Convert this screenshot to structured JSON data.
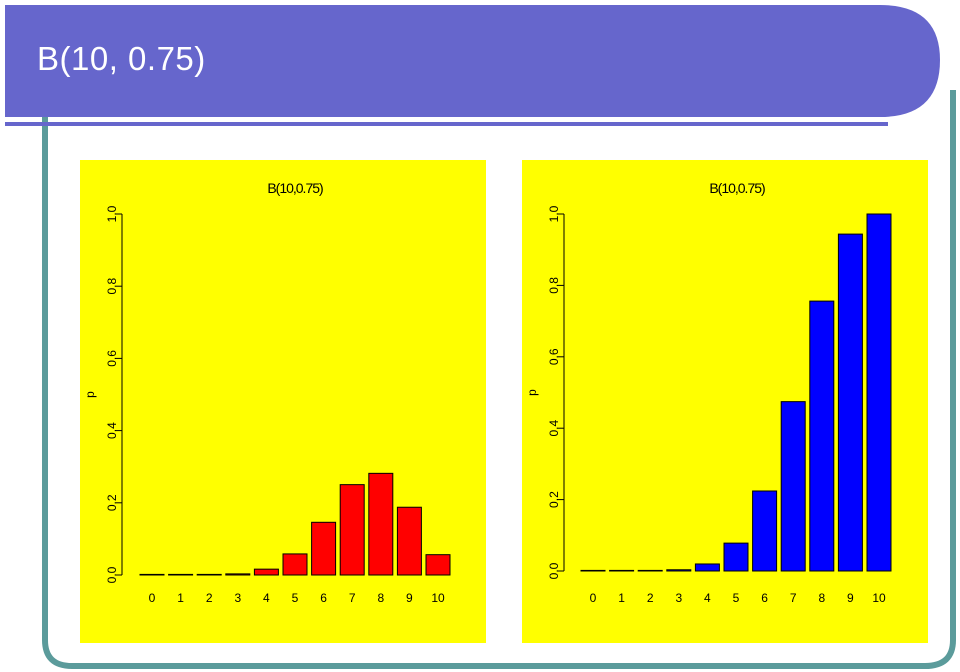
{
  "slide": {
    "title": "B(10, 0.75)",
    "colors": {
      "header": "#6666cc",
      "border": "#5b9b9b",
      "panel_bg": "#ffff00"
    }
  },
  "chart_data": [
    {
      "type": "bar",
      "title": "B(10,0.75)",
      "ylabel": "p",
      "xlabel": "",
      "categories": [
        "0",
        "1",
        "2",
        "3",
        "4",
        "5",
        "6",
        "7",
        "8",
        "9",
        "10"
      ],
      "values": [
        1e-06,
        3e-05,
        0.0004,
        0.0031,
        0.0162,
        0.0584,
        0.146,
        0.2503,
        0.2816,
        0.1877,
        0.0563
      ],
      "yticks": [
        "0.0",
        "0.2",
        "0.4",
        "0.6",
        "0.8",
        "1.0"
      ],
      "ylim": [
        0,
        1
      ],
      "bar_color": "#ff0000",
      "grid": false
    },
    {
      "type": "bar",
      "title": "B(10,0.75)",
      "ylabel": "p",
      "xlabel": "",
      "categories": [
        "0",
        "1",
        "2",
        "3",
        "4",
        "5",
        "6",
        "7",
        "8",
        "9",
        "10"
      ],
      "values": [
        1e-06,
        3e-05,
        0.0004,
        0.0035,
        0.0197,
        0.0781,
        0.2241,
        0.4744,
        0.756,
        0.9437,
        1.0
      ],
      "yticks": [
        "0.0",
        "0.2",
        "0.4",
        "0.6",
        "0.8",
        "1.0"
      ],
      "ylim": [
        0,
        1
      ],
      "bar_color": "#0000ff",
      "grid": false
    }
  ]
}
